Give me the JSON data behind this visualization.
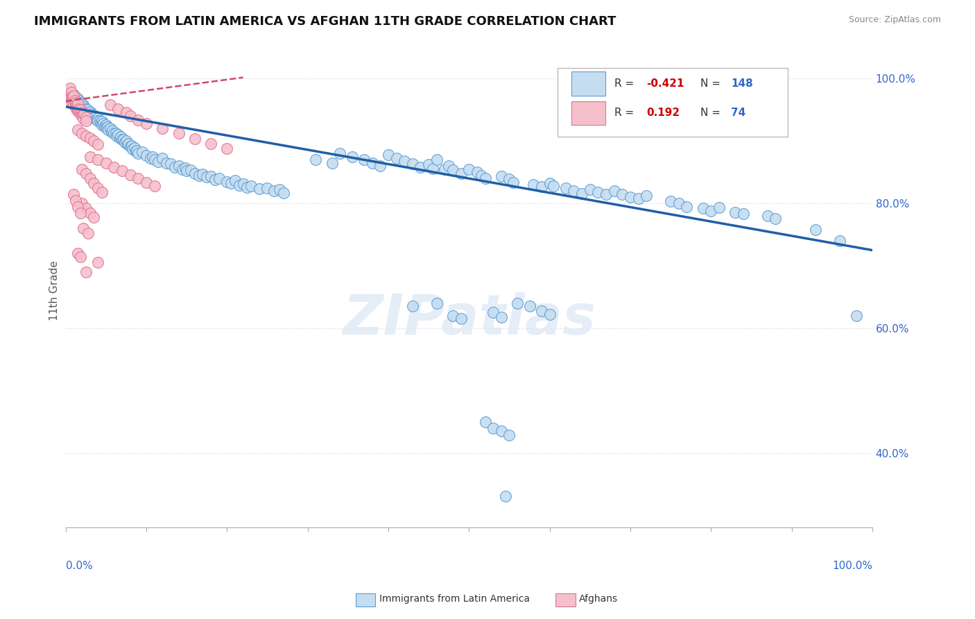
{
  "title": "IMMIGRANTS FROM LATIN AMERICA VS AFGHAN 11TH GRADE CORRELATION CHART",
  "source": "Source: ZipAtlas.com",
  "ylabel": "11th Grade",
  "legend_blue_r": "-0.421",
  "legend_blue_n": "148",
  "legend_pink_r": "0.192",
  "legend_pink_n": "74",
  "blue_color": "#c5ddf0",
  "blue_edge_color": "#5b9bd5",
  "blue_line_color": "#1f5fa6",
  "pink_color": "#f5c0cc",
  "pink_edge_color": "#e07090",
  "pink_line_color": "#d04868",
  "background_color": "#ffffff",
  "watermark": "ZIPatlas",
  "grid_color": "#d8d8d8",
  "axis_label_color": "#3366cc",
  "ymin": 0.28,
  "ymax": 1.04,
  "xmin": 0.0,
  "xmax": 1.0,
  "blue_trend_x0": 0.0,
  "blue_trend_y0": 0.955,
  "blue_trend_x1": 1.0,
  "blue_trend_y1": 0.725,
  "pink_trend_x0": 0.0,
  "pink_trend_y0": 0.964,
  "pink_trend_x1": 0.22,
  "pink_trend_y1": 1.002
}
